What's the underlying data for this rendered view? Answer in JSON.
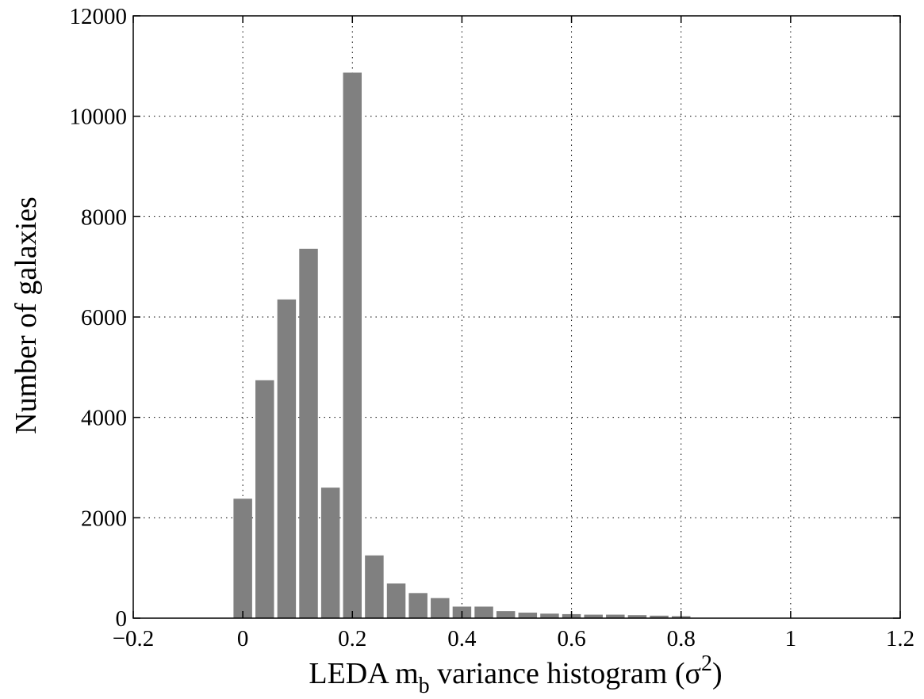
{
  "chart_data": {
    "type": "bar",
    "title": "",
    "xlabel": {
      "prefix": "LEDA m",
      "subscript": "b",
      "middle": " variance histogram (σ",
      "superscript": "2",
      "suffix": ")"
    },
    "ylabel": "Number of galaxies",
    "xlim": [
      -0.2,
      1.2
    ],
    "ylim": [
      0,
      12000
    ],
    "xticks": [
      "−0.2",
      "0",
      "0.2",
      "0.4",
      "0.6",
      "0.8",
      "1",
      "1.2"
    ],
    "xtick_values": [
      -0.2,
      0,
      0.2,
      0.4,
      0.6,
      0.8,
      1.0,
      1.2
    ],
    "yticks": [
      "0",
      "2000",
      "4000",
      "6000",
      "8000",
      "10000",
      "12000"
    ],
    "ytick_values": [
      0,
      2000,
      4000,
      6000,
      8000,
      10000,
      12000
    ],
    "grid": true,
    "bar_color": "#808080",
    "x": [
      0.0,
      0.04,
      0.08,
      0.12,
      0.16,
      0.2,
      0.24,
      0.28,
      0.32,
      0.36,
      0.4,
      0.44,
      0.48,
      0.52,
      0.56,
      0.6,
      0.64,
      0.68,
      0.72,
      0.76,
      0.8,
      0.84,
      0.88,
      0.92,
      0.96,
      1.0
    ],
    "values": [
      2380,
      4740,
      6350,
      7360,
      2600,
      10870,
      1250,
      690,
      500,
      400,
      230,
      230,
      140,
      110,
      90,
      80,
      70,
      70,
      60,
      50,
      40,
      0,
      0,
      0,
      0,
      0
    ]
  }
}
